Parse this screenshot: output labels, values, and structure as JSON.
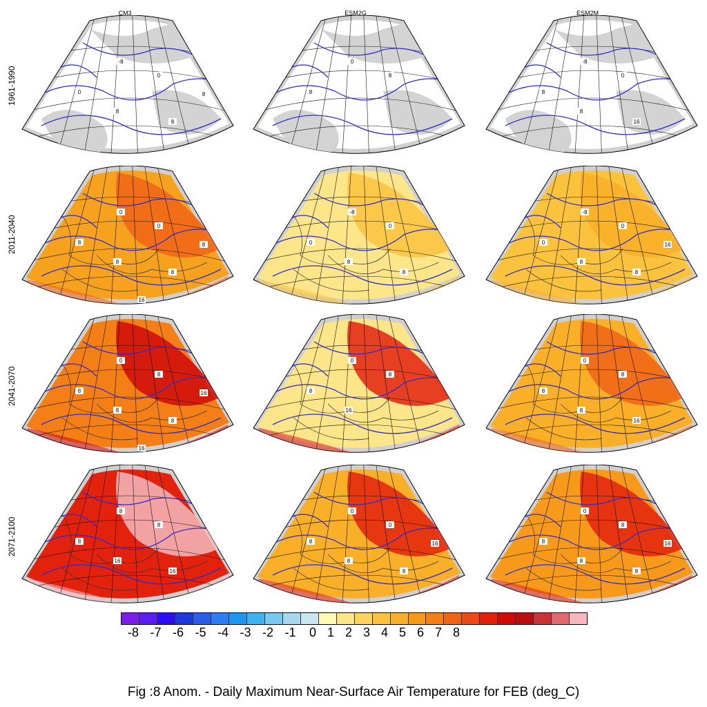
{
  "columns": [
    "CM3",
    "ESM2G",
    "ESM2M"
  ],
  "rows": [
    "1961-1990",
    "2011-2040",
    "2041-2070",
    "2071-2100"
  ],
  "colorbar": {
    "colors": [
      "#7a1ee8",
      "#5a1ef0",
      "#2a10f0",
      "#1f3ad8",
      "#2a5ee8",
      "#2d7ef2",
      "#1f97ee",
      "#3fb2f0",
      "#79c8ee",
      "#a8d8ef",
      "#cbe6f2",
      "#fff9b3",
      "#fde58a",
      "#fcd35f",
      "#fbc33d",
      "#f9af27",
      "#f79a1c",
      "#f47f16",
      "#f06418",
      "#ec4a17",
      "#e3220e",
      "#cf0a0a",
      "#b90f14",
      "#c8343a",
      "#e06a70",
      "#f6b8be"
    ],
    "tick_labels": [
      "-8",
      "-7",
      "-6",
      "-5",
      "-4",
      "-3",
      "-2",
      "-1",
      "0",
      "1",
      "2",
      "3",
      "4",
      "5",
      "6",
      "7",
      "8"
    ]
  },
  "panels": [
    [
      {
        "fill": "#ffffff",
        "labels": [
          "-8",
          "0",
          "0",
          "8",
          "8",
          "8"
        ]
      },
      {
        "fill": "#ffffff",
        "labels": [
          "0",
          "8",
          "8"
        ]
      },
      {
        "fill": "#ffffff",
        "labels": [
          "-8",
          "0",
          "8",
          "8",
          "16"
        ]
      }
    ],
    [
      {
        "fill": "#f7a21e",
        "accent": "#f06418",
        "labels": [
          "0",
          "0",
          "8",
          "8",
          "8",
          "8",
          "16"
        ]
      },
      {
        "fill": "#fde58a",
        "accent": "#fbc33d",
        "labels": [
          "-8",
          "0",
          "0",
          "8",
          "8"
        ]
      },
      {
        "fill": "#fbc33d",
        "accent": "#f9af27",
        "labels": [
          "-8",
          "0",
          "0",
          "8",
          "8",
          "16"
        ]
      }
    ],
    [
      {
        "fill": "#f47f16",
        "accent": "#cf0a0a",
        "labels": [
          "0",
          "8",
          "8",
          "8",
          "8",
          "16",
          "16"
        ]
      },
      {
        "fill": "#fde58a",
        "accent": "#e3220e",
        "labels": [
          "0",
          "8",
          "8",
          "16"
        ]
      },
      {
        "fill": "#f9af27",
        "accent": "#f06418",
        "labels": [
          "0",
          "8",
          "8",
          "8",
          "16"
        ]
      }
    ],
    [
      {
        "fill": "#e3220e",
        "accent": "#f6b8be",
        "labels": [
          "8",
          "8",
          "8",
          "16",
          "16"
        ]
      },
      {
        "fill": "#f9af27",
        "accent": "#e3220e",
        "labels": [
          "0",
          "0",
          "8",
          "8",
          "8",
          "16"
        ]
      },
      {
        "fill": "#f79a1c",
        "accent": "#e3220e",
        "labels": [
          "0",
          "8",
          "8",
          "8",
          "8",
          "16"
        ]
      }
    ]
  ],
  "caption": "Fig :8  Anom.  - Daily Maximum Near-Surface Air Temperature for FEB (deg_C)"
}
